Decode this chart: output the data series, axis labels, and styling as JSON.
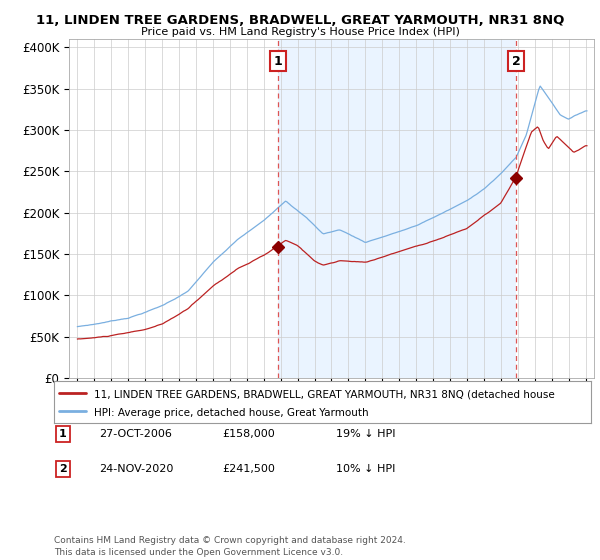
{
  "title": "11, LINDEN TREE GARDENS, BRADWELL, GREAT YARMOUTH, NR31 8NQ",
  "subtitle": "Price paid vs. HM Land Registry's House Price Index (HPI)",
  "ylabel_ticks": [
    "£0",
    "£50K",
    "£100K",
    "£150K",
    "£200K",
    "£250K",
    "£300K",
    "£350K",
    "£400K"
  ],
  "ytick_values": [
    0,
    50000,
    100000,
    150000,
    200000,
    250000,
    300000,
    350000,
    400000
  ],
  "ylim": [
    0,
    410000
  ],
  "sale1_date_x": 2006.82,
  "sale1_price": 158000,
  "sale2_date_x": 2020.9,
  "sale2_price": 241500,
  "hpi_color": "#7aafe0",
  "price_color": "#bb2222",
  "vline_color": "#dd5555",
  "shade_color": "#ddeeff",
  "legend_label_price": "11, LINDEN TREE GARDENS, BRADWELL, GREAT YARMOUTH, NR31 8NQ (detached house",
  "legend_label_hpi": "HPI: Average price, detached house, Great Yarmouth",
  "sale1_text": "27-OCT-2006",
  "sale1_amount": "£158,000",
  "sale1_pct": "19% ↓ HPI",
  "sale2_text": "24-NOV-2020",
  "sale2_amount": "£241,500",
  "sale2_pct": "10% ↓ HPI",
  "footer": "Contains HM Land Registry data © Crown copyright and database right 2024.\nThis data is licensed under the Open Government Licence v3.0.",
  "xlim_start": 1994.5,
  "xlim_end": 2025.5
}
